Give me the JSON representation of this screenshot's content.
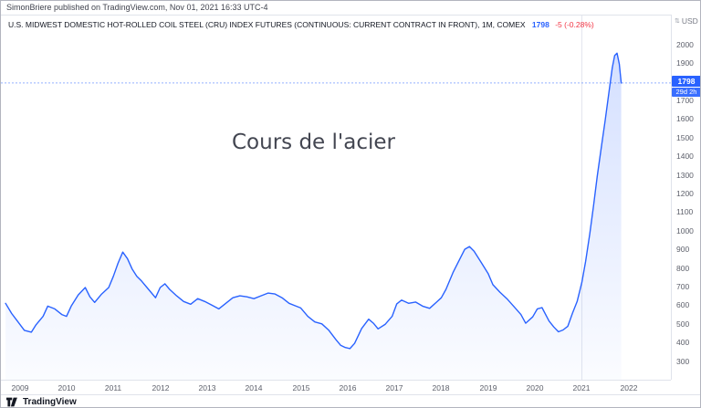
{
  "header": {
    "publish_line": "SimonBriere published on TradingView.com, Nov 01, 2021 16:33 UTC-4"
  },
  "chart_header": {
    "symbol_title": "U.S. MIDWEST DOMESTIC HOT-ROLLED COIL STEEL (CRU) INDEX FUTURES (CONTINUOUS: CURRENT CONTRACT IN FRONT), 1M, COMEX",
    "last_price": "1798",
    "change": "-5 (-0.28%)",
    "price_color": "#2962ff",
    "change_color": "#f23645"
  },
  "annotation": {
    "text": "Cours de l'acier"
  },
  "price_scale": {
    "unit": "USD",
    "badge": {
      "price": "1798",
      "countdown": "29d 2h",
      "color": "#2962ff"
    }
  },
  "footer": {
    "brand": "TradingView"
  },
  "chart_data": {
    "type": "area",
    "title": "Cours de l'acier",
    "xlabel": "",
    "ylabel": "USD",
    "legend": "none",
    "grid": "off",
    "line_color": "#2962ff",
    "fill_top": "rgba(41,98,255,0.20)",
    "fill_bottom": "rgba(41,98,255,0.02)",
    "xlim": [
      2008.6,
      2022.9
    ],
    "ylim": [
      200,
      2160
    ],
    "x_ticks": [
      2009,
      2010,
      2011,
      2012,
      2013,
      2014,
      2015,
      2016,
      2017,
      2018,
      2019,
      2020,
      2021,
      2022
    ],
    "y_ticks": [
      300,
      400,
      500,
      600,
      700,
      800,
      900,
      1000,
      1100,
      1200,
      1300,
      1400,
      1500,
      1600,
      1700,
      1800,
      1900,
      2000
    ],
    "last_value": 1798,
    "vline_year": 2021,
    "x": [
      2008.7,
      2008.83,
      2008.95,
      2009.1,
      2009.25,
      2009.35,
      2009.5,
      2009.6,
      2009.75,
      2009.9,
      2010.0,
      2010.1,
      2010.25,
      2010.4,
      2010.5,
      2010.6,
      2010.75,
      2010.9,
      2011.0,
      2011.1,
      2011.2,
      2011.3,
      2011.4,
      2011.5,
      2011.6,
      2011.75,
      2011.9,
      2012.0,
      2012.1,
      2012.2,
      2012.35,
      2012.5,
      2012.65,
      2012.8,
      2012.95,
      2013.1,
      2013.25,
      2013.4,
      2013.55,
      2013.7,
      2013.85,
      2014.0,
      2014.15,
      2014.3,
      2014.45,
      2014.6,
      2014.75,
      2014.9,
      2015.0,
      2015.15,
      2015.3,
      2015.45,
      2015.6,
      2015.75,
      2015.85,
      2015.95,
      2016.05,
      2016.15,
      2016.3,
      2016.45,
      2016.55,
      2016.65,
      2016.8,
      2016.95,
      2017.05,
      2017.15,
      2017.3,
      2017.45,
      2017.6,
      2017.75,
      2017.9,
      2018.0,
      2018.1,
      2018.25,
      2018.4,
      2018.5,
      2018.6,
      2018.7,
      2018.85,
      2019.0,
      2019.1,
      2019.25,
      2019.4,
      2019.55,
      2019.7,
      2019.8,
      2019.95,
      2020.05,
      2020.15,
      2020.3,
      2020.4,
      2020.5,
      2020.6,
      2020.7,
      2020.8,
      2020.9,
      2021.0,
      2021.08,
      2021.17,
      2021.25,
      2021.33,
      2021.42,
      2021.5,
      2021.58,
      2021.65,
      2021.7,
      2021.75,
      2021.8,
      2021.84
    ],
    "values": [
      615,
      560,
      520,
      470,
      460,
      500,
      545,
      600,
      585,
      555,
      545,
      600,
      660,
      700,
      650,
      620,
      665,
      700,
      760,
      830,
      890,
      855,
      800,
      760,
      735,
      690,
      645,
      700,
      720,
      690,
      655,
      625,
      610,
      640,
      625,
      605,
      585,
      615,
      645,
      655,
      650,
      640,
      655,
      670,
      665,
      645,
      615,
      600,
      590,
      545,
      515,
      505,
      470,
      420,
      390,
      378,
      372,
      400,
      480,
      530,
      508,
      478,
      502,
      545,
      612,
      632,
      615,
      622,
      600,
      588,
      622,
      645,
      690,
      780,
      855,
      905,
      920,
      895,
      835,
      775,
      715,
      675,
      640,
      598,
      555,
      508,
      542,
      585,
      592,
      520,
      488,
      462,
      472,
      492,
      562,
      625,
      728,
      840,
      990,
      1140,
      1300,
      1460,
      1600,
      1750,
      1880,
      1945,
      1958,
      1900,
      1798
    ]
  }
}
